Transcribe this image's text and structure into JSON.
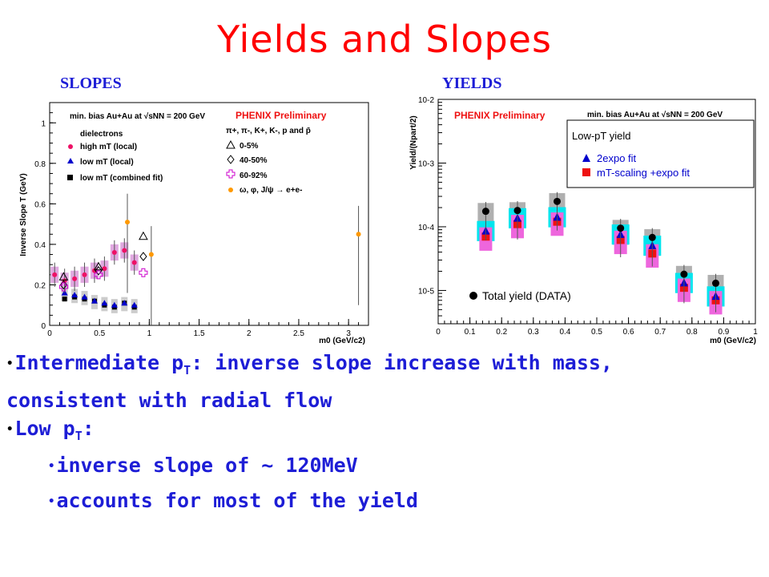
{
  "title": "Yields and Slopes",
  "labels": {
    "slopes": "SLOPES",
    "yields": "YIELDS"
  },
  "bullets": {
    "intermediate_main": "Intermediate p",
    "intermediate_sub": "T",
    "intermediate_rest": ": inverse slope increase with mass, consistent with radial flow",
    "low_main": "Low p",
    "low_sub": "T",
    "low_colon": ":",
    "item1": "inverse slope of ~ 120MeV",
    "item2": "accounts for most of the yield"
  },
  "chart_data": [
    {
      "type": "scatter",
      "ylabel": "Inverse Slope T (GeV)",
      "xlabel": "m0 (GeV/c2)",
      "xlim": [
        0,
        3.2
      ],
      "ylim": [
        0,
        1.1
      ],
      "xticks": [
        "0",
        "0.5",
        "1",
        "1.5",
        "2",
        "2.5",
        "3"
      ],
      "yticks": [
        "0",
        "0.2",
        "0.4",
        "0.6",
        "0.8",
        "1"
      ],
      "legend": {
        "header": "min. bias Au+Au at √sNN = 200 GeV",
        "preliminary": "PHENIX Preliminary",
        "group1_title": "dielectrons",
        "group1": [
          "high mT (local)",
          "low mT (local)",
          "low mT (combined fit)"
        ],
        "group2_title": "π+, π-, K+, K-, p and p̄",
        "group2": [
          "0-5%",
          "40-50%",
          "60-92%",
          "ω, φ, J/ψ → e+e-"
        ]
      },
      "colors": {
        "high": "#ee1166",
        "low": "#0000cc",
        "combined": "#000000",
        "cent60": "#cc00cc",
        "omega": "#ff9900",
        "band": "#e0a8e0"
      },
      "series": [
        {
          "name": "high mT (local)",
          "x": [
            0.05,
            0.15,
            0.25,
            0.35,
            0.45,
            0.55,
            0.65,
            0.75,
            0.85
          ],
          "y": [
            0.25,
            0.22,
            0.23,
            0.25,
            0.27,
            0.28,
            0.36,
            0.37,
            0.31
          ]
        },
        {
          "name": "low mT (local)",
          "x": [
            0.15,
            0.25,
            0.35,
            0.45,
            0.55,
            0.65,
            0.75,
            0.85
          ],
          "y": [
            0.16,
            0.15,
            0.14,
            0.12,
            0.11,
            0.1,
            0.11,
            0.1
          ]
        },
        {
          "name": "low mT (combined fit)",
          "x": [
            0.15,
            0.25,
            0.35,
            0.45,
            0.55,
            0.65,
            0.75,
            0.85
          ],
          "y": [
            0.13,
            0.14,
            0.13,
            0.12,
            0.1,
            0.09,
            0.11,
            0.09
          ]
        },
        {
          "name": "ω, φ, J/ψ → e+e-",
          "x": [
            0.78,
            1.02,
            3.1
          ],
          "y": [
            0.51,
            0.35,
            0.45
          ]
        },
        {
          "name": "0-5%",
          "x": [
            0.14,
            0.49,
            0.94
          ],
          "y": [
            0.24,
            0.29,
            0.44
          ]
        },
        {
          "name": "40-50%",
          "x": [
            0.14,
            0.49,
            0.94
          ],
          "y": [
            0.2,
            0.27,
            0.34
          ]
        },
        {
          "name": "60-92%",
          "x": [
            0.14,
            0.49,
            0.94
          ],
          "y": [
            0.19,
            0.25,
            0.26
          ]
        }
      ]
    },
    {
      "type": "scatter",
      "ylabel": "Yield/(Npart/2)",
      "xlabel": "m0 (GeV/c2)",
      "yscale": "log",
      "xlim": [
        0,
        1.0
      ],
      "ylim": [
        3e-06,
        0.01
      ],
      "xticks": [
        "0",
        "0.1",
        "0.2",
        "0.3",
        "0.4",
        "0.5",
        "0.6",
        "0.7",
        "0.8",
        "0.9",
        "1"
      ],
      "yticks": [
        "10-5",
        "10-4",
        "10-3",
        "10-2"
      ],
      "legend": {
        "preliminary": "PHENIX Preliminary",
        "header": "min. bias Au+Au at √sNN = 200 GeV",
        "box_title": "Low-pT yield",
        "items": [
          "2expo fit",
          "mT-scaling +expo fit"
        ],
        "total": "Total yield (DATA)"
      },
      "colors": {
        "total": "#000000",
        "expo": "#0000cc",
        "mtscale": "#ee1111",
        "cyan": "#00e5ee",
        "pink": "#ee66dd",
        "gray": "#b0b0b0"
      },
      "series": [
        {
          "name": "Total yield (DATA)",
          "x": [
            0.15,
            0.25,
            0.375,
            0.575,
            0.675,
            0.775,
            0.875
          ],
          "y": [
            0.000175,
            0.00018,
            0.00025,
            9.5e-05,
            6.8e-05,
            1.8e-05,
            1.3e-05
          ]
        },
        {
          "name": "2expo fit",
          "x": [
            0.15,
            0.25,
            0.375,
            0.575,
            0.675,
            0.775,
            0.875
          ],
          "y": [
            8.5e-05,
            0.000135,
            0.00014,
            7.5e-05,
            5e-05,
            1.3e-05,
            8e-06
          ]
        },
        {
          "name": "mT-scaling +expo fit",
          "x": [
            0.15,
            0.25,
            0.375,
            0.575,
            0.675,
            0.775,
            0.875
          ],
          "y": [
            7e-05,
            0.00011,
            0.00012,
            6.2e-05,
            3.8e-05,
            1.1e-05,
            7e-06
          ]
        }
      ]
    }
  ]
}
